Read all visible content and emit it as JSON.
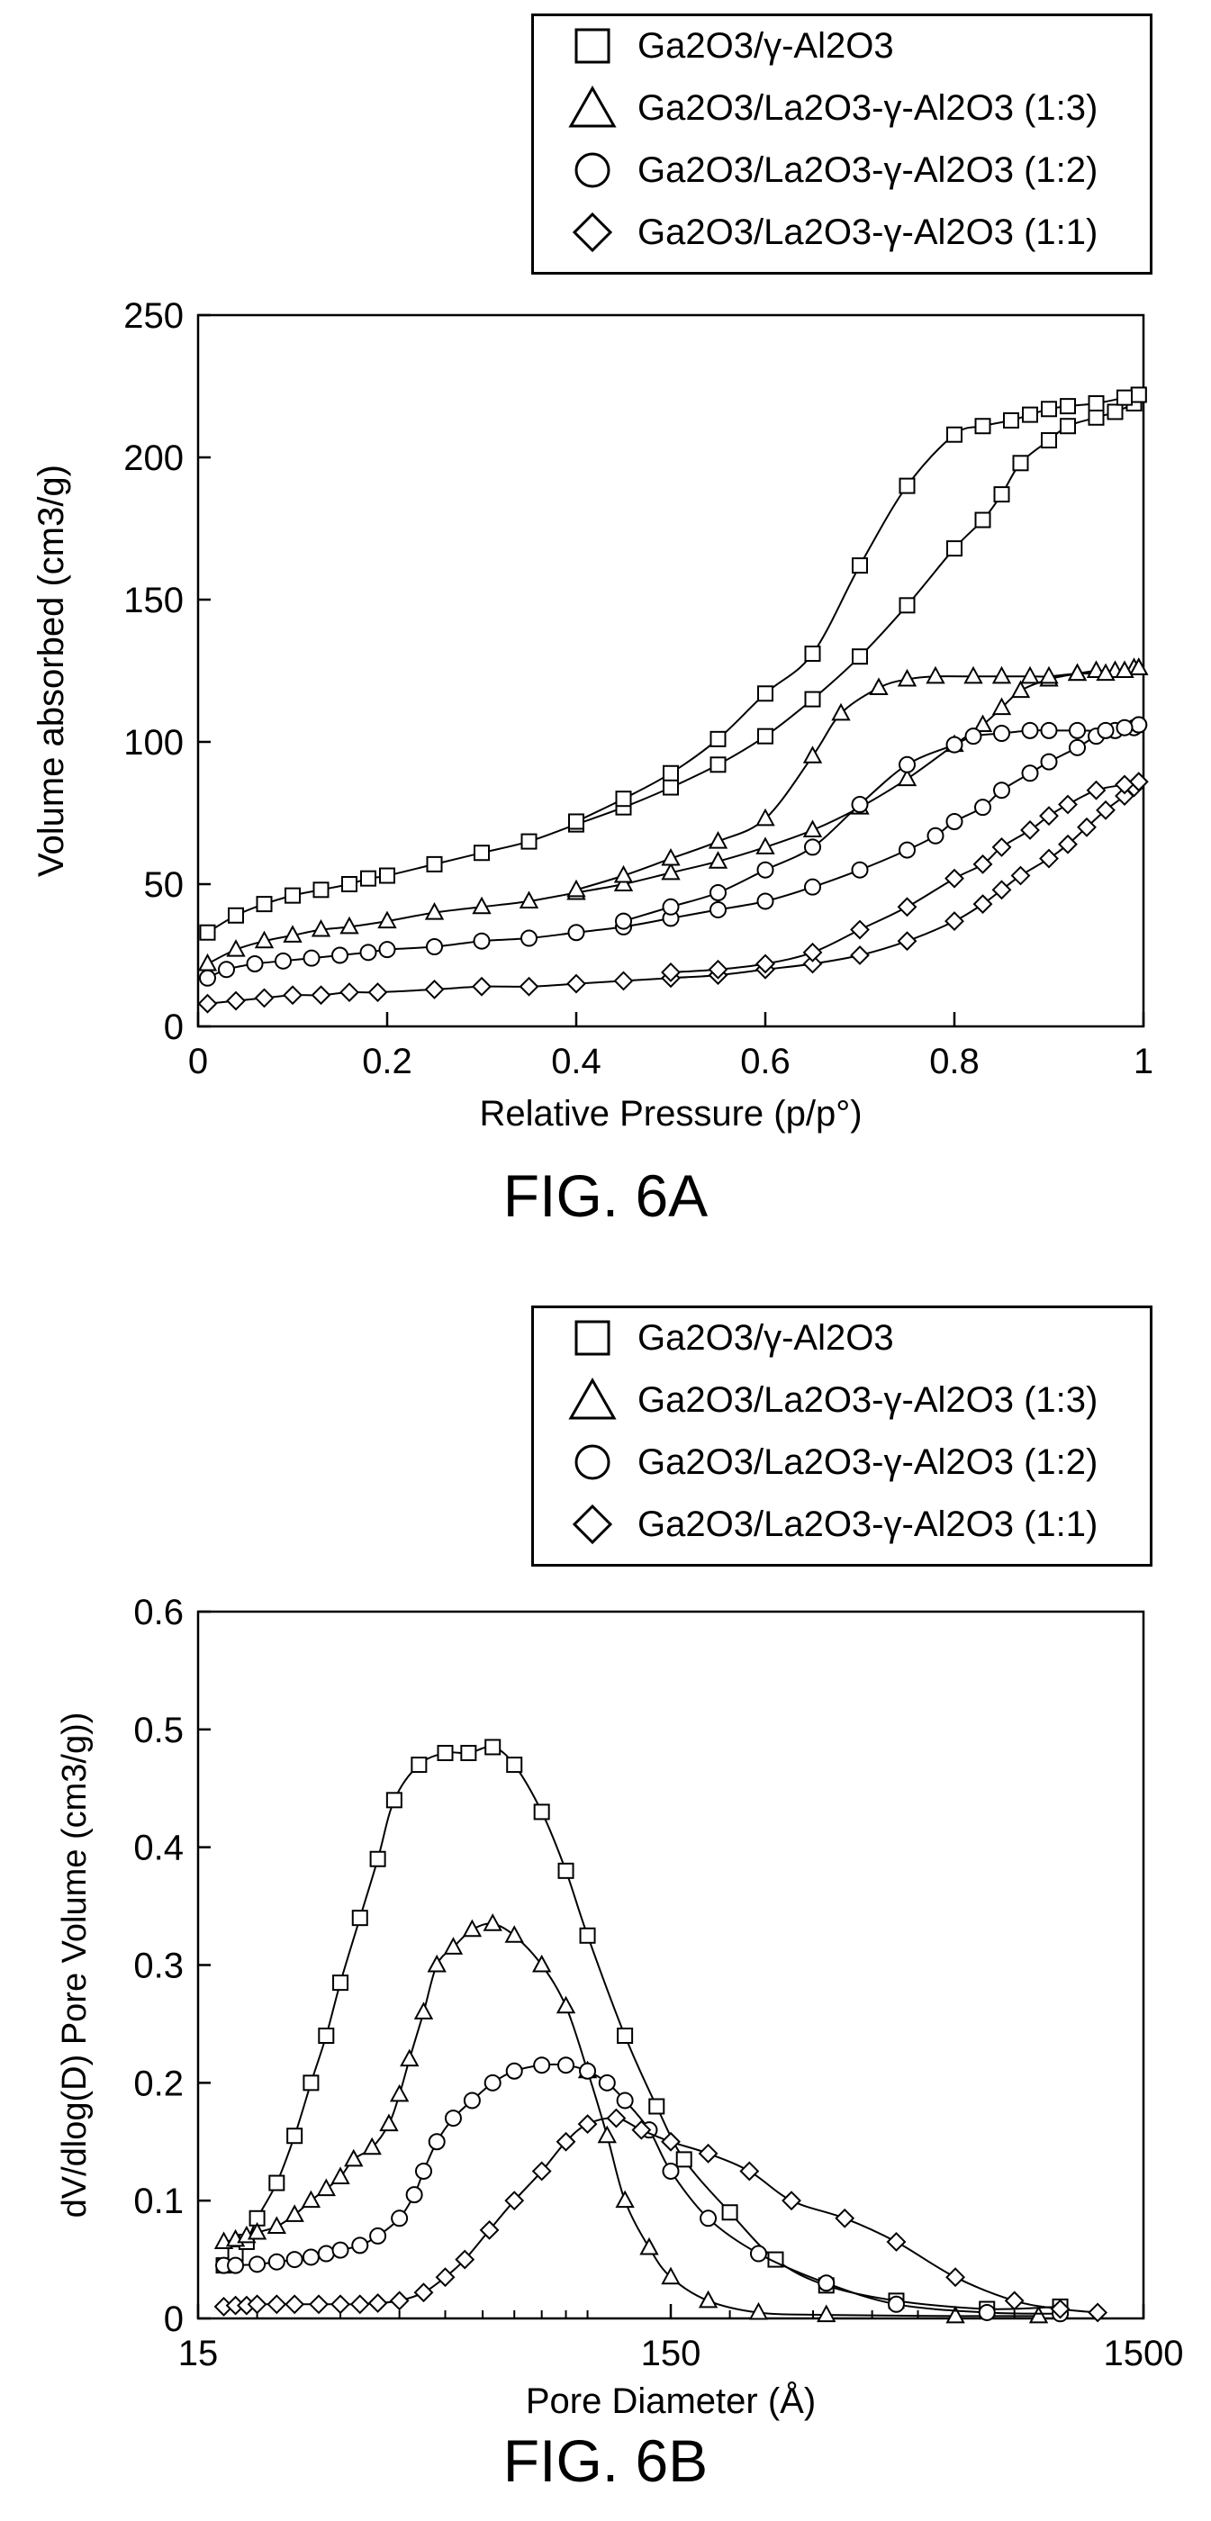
{
  "chart_data": [
    {
      "type": "line",
      "caption": "FIG. 6A",
      "xlabel": "Relative Pressure (p/p°)",
      "ylabel": "Volume absorbed (cm3/g)",
      "xlim": [
        0,
        1
      ],
      "ylim": [
        0,
        250
      ],
      "xticks": [
        0,
        0.2,
        0.4,
        0.6,
        0.8,
        1
      ],
      "xtick_labels": [
        "0",
        "0.2",
        "0.4",
        "0.6",
        "0.8",
        "1"
      ],
      "yticks": [
        0,
        50,
        100,
        150,
        200,
        250
      ],
      "ytick_labels": [
        "0",
        "50",
        "100",
        "150",
        "200",
        "250"
      ],
      "grid": false,
      "legend_position": "top-right, above plot",
      "series": [
        {
          "name": "Ga2O3/γ-Al2O3",
          "marker": "square",
          "adsorption": {
            "x": [
              0.01,
              0.04,
              0.07,
              0.1,
              0.13,
              0.16,
              0.18,
              0.2,
              0.25,
              0.3,
              0.35,
              0.4,
              0.45,
              0.5,
              0.55,
              0.6,
              0.65,
              0.7,
              0.75,
              0.8,
              0.83,
              0.85,
              0.87,
              0.9,
              0.92,
              0.95,
              0.97,
              0.99,
              0.995
            ],
            "y": [
              33,
              39,
              43,
              46,
              48,
              50,
              52,
              53,
              57,
              61,
              65,
              71,
              77,
              84,
              92,
              102,
              115,
              130,
              148,
              168,
              178,
              187,
              198,
              206,
              211,
              214,
              216,
              219,
              222
            ]
          },
          "desorption": {
            "x": [
              0.995,
              0.98,
              0.95,
              0.92,
              0.9,
              0.88,
              0.86,
              0.83,
              0.8,
              0.75,
              0.7,
              0.65,
              0.6,
              0.55,
              0.5,
              0.45,
              0.4
            ],
            "y": [
              222,
              221,
              219,
              218,
              217,
              215,
              213,
              211,
              208,
              190,
              162,
              131,
              117,
              101,
              89,
              80,
              72
            ]
          }
        },
        {
          "name": "Ga2O3/La2O3-γ-Al2O3 (1:3)",
          "marker": "triangle",
          "adsorption": {
            "x": [
              0.01,
              0.04,
              0.07,
              0.1,
              0.13,
              0.16,
              0.2,
              0.25,
              0.3,
              0.35,
              0.4,
              0.45,
              0.5,
              0.55,
              0.6,
              0.65,
              0.7,
              0.75,
              0.8,
              0.83,
              0.85,
              0.87,
              0.9,
              0.93,
              0.95,
              0.97,
              0.99,
              0.995
            ],
            "y": [
              22,
              27,
              30,
              32,
              34,
              35,
              37,
              40,
              42,
              44,
              47,
              50,
              54,
              58,
              63,
              69,
              77,
              87,
              99,
              106,
              112,
              118,
              122,
              124,
              125,
              125,
              126,
              126
            ]
          },
          "desorption": {
            "x": [
              0.995,
              0.98,
              0.96,
              0.93,
              0.9,
              0.88,
              0.85,
              0.82,
              0.78,
              0.75,
              0.72,
              0.68,
              0.65,
              0.6,
              0.55,
              0.5,
              0.45,
              0.4
            ],
            "y": [
              126,
              125,
              124,
              124,
              123,
              123,
              123,
              123,
              123,
              122,
              119,
              110,
              95,
              73,
              65,
              59,
              53,
              48
            ]
          }
        },
        {
          "name": "Ga2O3/La2O3-γ-Al2O3 (1:2)",
          "marker": "circle",
          "adsorption": {
            "x": [
              0.01,
              0.03,
              0.06,
              0.09,
              0.12,
              0.15,
              0.18,
              0.2,
              0.25,
              0.3,
              0.35,
              0.4,
              0.45,
              0.5,
              0.55,
              0.6,
              0.65,
              0.7,
              0.75,
              0.78,
              0.8,
              0.83,
              0.85,
              0.88,
              0.9,
              0.93,
              0.95,
              0.97,
              0.99,
              0.995
            ],
            "y": [
              17,
              20,
              22,
              23,
              24,
              25,
              26,
              27,
              28,
              30,
              31,
              33,
              35,
              38,
              41,
              44,
              49,
              55,
              62,
              67,
              72,
              77,
              83,
              89,
              93,
              98,
              102,
              104,
              105,
              106
            ]
          },
          "desorption": {
            "x": [
              0.995,
              0.98,
              0.96,
              0.93,
              0.9,
              0.88,
              0.85,
              0.82,
              0.8,
              0.75,
              0.7,
              0.65,
              0.6,
              0.55,
              0.5,
              0.45
            ],
            "y": [
              106,
              105,
              104,
              104,
              104,
              104,
              103,
              102,
              99,
              92,
              78,
              63,
              55,
              47,
              42,
              37
            ]
          }
        },
        {
          "name": "Ga2O3/La2O3-γ-Al2O3 (1:1)",
          "marker": "diamond",
          "adsorption": {
            "x": [
              0.01,
              0.04,
              0.07,
              0.1,
              0.13,
              0.16,
              0.19,
              0.25,
              0.3,
              0.35,
              0.4,
              0.45,
              0.5,
              0.55,
              0.6,
              0.65,
              0.7,
              0.75,
              0.8,
              0.83,
              0.85,
              0.87,
              0.9,
              0.92,
              0.94,
              0.96,
              0.98,
              0.99,
              0.995
            ],
            "y": [
              8,
              9,
              10,
              11,
              11,
              12,
              12,
              13,
              14,
              14,
              15,
              16,
              17,
              18,
              20,
              22,
              25,
              30,
              37,
              43,
              48,
              53,
              59,
              64,
              70,
              76,
              81,
              84,
              86
            ]
          },
          "desorption": {
            "x": [
              0.995,
              0.98,
              0.95,
              0.92,
              0.9,
              0.88,
              0.85,
              0.83,
              0.8,
              0.75,
              0.7,
              0.65,
              0.6,
              0.55,
              0.5
            ],
            "y": [
              86,
              85,
              83,
              78,
              74,
              69,
              63,
              57,
              52,
              42,
              34,
              26,
              22,
              20,
              19
            ]
          }
        }
      ]
    },
    {
      "type": "line",
      "caption": "FIG. 6B",
      "xlabel": "Pore Diameter (Å)",
      "ylabel": "dV/dlog(D) Pore Volume (cm3/g))",
      "x_scale": "log",
      "xlim": [
        15,
        1500
      ],
      "ylim": [
        0,
        0.6
      ],
      "xticks": [
        15,
        150,
        1500
      ],
      "xtick_labels": [
        "15",
        "150",
        "1500"
      ],
      "yticks": [
        0,
        0.1,
        0.2,
        0.3,
        0.4,
        0.5,
        0.6
      ],
      "ytick_labels": [
        "0",
        "0.1",
        "0.2",
        "0.3",
        "0.4",
        "0.5",
        "0.6"
      ],
      "grid": false,
      "legend_position": "top-right, above plot",
      "series": [
        {
          "name": "Ga2O3/γ-Al2O3",
          "marker": "square",
          "x": [
            17,
            18,
            19,
            20,
            22,
            24,
            26,
            28,
            30,
            33,
            36,
            39,
            44,
            50,
            56,
            63,
            70,
            80,
            90,
            100,
            120,
            140,
            160,
            200,
            250,
            320,
            450,
            700,
            1000
          ],
          "y": [
            0.045,
            0.055,
            0.065,
            0.085,
            0.115,
            0.155,
            0.2,
            0.24,
            0.285,
            0.34,
            0.39,
            0.44,
            0.47,
            0.48,
            0.48,
            0.485,
            0.47,
            0.43,
            0.38,
            0.325,
            0.24,
            0.18,
            0.135,
            0.09,
            0.05,
            0.028,
            0.015,
            0.008,
            0.01
          ]
        },
        {
          "name": "Ga2O3/La2O3-γ-Al2O3 (1:3)",
          "marker": "triangle",
          "x": [
            17,
            18,
            19,
            20,
            22,
            24,
            26,
            28,
            30,
            32,
            35,
            38,
            40,
            42,
            45,
            48,
            52,
            57,
            63,
            70,
            80,
            90,
            100,
            110,
            120,
            135,
            150,
            180,
            230,
            320,
            600,
            900
          ],
          "y": [
            0.065,
            0.067,
            0.07,
            0.073,
            0.078,
            0.088,
            0.1,
            0.11,
            0.12,
            0.135,
            0.145,
            0.165,
            0.19,
            0.22,
            0.26,
            0.3,
            0.315,
            0.33,
            0.335,
            0.325,
            0.3,
            0.265,
            0.21,
            0.155,
            0.1,
            0.06,
            0.035,
            0.015,
            0.005,
            0.003,
            0.002,
            0.002
          ]
        },
        {
          "name": "Ga2O3/La2O3-γ-Al2O3 (1:2)",
          "marker": "circle",
          "x": [
            17,
            18,
            20,
            22,
            24,
            26,
            28,
            30,
            33,
            36,
            40,
            43,
            45,
            48,
            52,
            57,
            63,
            70,
            80,
            90,
            100,
            110,
            120,
            135,
            150,
            180,
            230,
            320,
            450,
            700,
            1000
          ],
          "y": [
            0.045,
            0.045,
            0.046,
            0.048,
            0.05,
            0.052,
            0.055,
            0.058,
            0.062,
            0.07,
            0.085,
            0.105,
            0.125,
            0.15,
            0.17,
            0.185,
            0.2,
            0.21,
            0.215,
            0.215,
            0.21,
            0.2,
            0.185,
            0.16,
            0.125,
            0.085,
            0.055,
            0.03,
            0.012,
            0.005,
            0.004
          ]
        },
        {
          "name": "Ga2O3/La2O3-γ-Al2O3 (1:1)",
          "marker": "diamond",
          "x": [
            17,
            18,
            19,
            20,
            22,
            24,
            27,
            30,
            33,
            36,
            40,
            45,
            50,
            55,
            62,
            70,
            80,
            90,
            100,
            115,
            130,
            150,
            180,
            220,
            270,
            350,
            450,
            600,
            800,
            1000,
            1200
          ],
          "y": [
            0.01,
            0.011,
            0.011,
            0.012,
            0.012,
            0.012,
            0.012,
            0.012,
            0.012,
            0.013,
            0.015,
            0.022,
            0.035,
            0.05,
            0.075,
            0.1,
            0.125,
            0.15,
            0.165,
            0.17,
            0.16,
            0.15,
            0.14,
            0.125,
            0.1,
            0.085,
            0.065,
            0.035,
            0.015,
            0.008,
            0.005
          ]
        }
      ]
    }
  ]
}
